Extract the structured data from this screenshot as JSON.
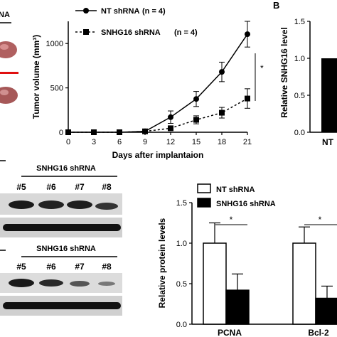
{
  "panel_labels": {
    "b": "B"
  },
  "fragments": {
    "top_left_text": "NA"
  },
  "chart_data": [
    {
      "type": "line",
      "xlabel": "Days after implantaion",
      "ylabel": "Tumor volume (mm³)",
      "x": [
        0,
        3,
        6,
        9,
        12,
        15,
        18,
        21
      ],
      "xlim": [
        0,
        21
      ],
      "ylim": [
        0,
        1250
      ],
      "yticks": [
        0,
        500,
        1000
      ],
      "series": [
        {
          "name": "NT shRNA",
          "n_label": "(n = 4)",
          "marker": "circle",
          "line": "solid",
          "values": [
            0,
            0,
            0,
            10,
            170,
            375,
            680,
            1105
          ],
          "errors": [
            0,
            0,
            0,
            10,
            70,
            85,
            110,
            145
          ]
        },
        {
          "name": "SNHG16 shRNA",
          "n_label": "(n = 4)",
          "marker": "square",
          "line": "dashed",
          "values": [
            0,
            0,
            0,
            10,
            45,
            140,
            220,
            380
          ],
          "errors": [
            0,
            0,
            0,
            8,
            25,
            45,
            60,
            110
          ]
        }
      ],
      "significance": "*"
    },
    {
      "type": "bar",
      "ylabel": "Relative SNHG16 level",
      "ylim": [
        0,
        1.5
      ],
      "yticks": [
        "0.0",
        "0.5",
        "1.0",
        "1.5"
      ],
      "categories": [
        "NT"
      ],
      "values": [
        1.0
      ]
    },
    {
      "type": "bar",
      "ylabel": "Relative protein levels",
      "ylim": [
        0,
        1.5
      ],
      "yticks": [
        "0.0",
        "0.5",
        "1.0",
        "1.5"
      ],
      "categories": [
        "PCNA",
        "Bcl-2"
      ],
      "series": [
        {
          "name": "NT shRNA",
          "color": "#ffffff",
          "values": [
            1.0,
            1.0
          ],
          "errors": [
            0.25,
            0.2
          ]
        },
        {
          "name": "SNHG16 shRNA",
          "color": "#000000",
          "values": [
            0.42,
            0.32
          ],
          "errors": [
            0.2,
            0.15
          ]
        }
      ],
      "significance": [
        "*",
        "*"
      ]
    }
  ],
  "blots": [
    {
      "header": "SNHG16 shRNA",
      "lanes": [
        "#5",
        "#6",
        "#7",
        "#8"
      ]
    },
    {
      "header": "SNHG16 shRNA",
      "lanes": [
        "#5",
        "#6",
        "#7",
        "#8"
      ]
    }
  ]
}
